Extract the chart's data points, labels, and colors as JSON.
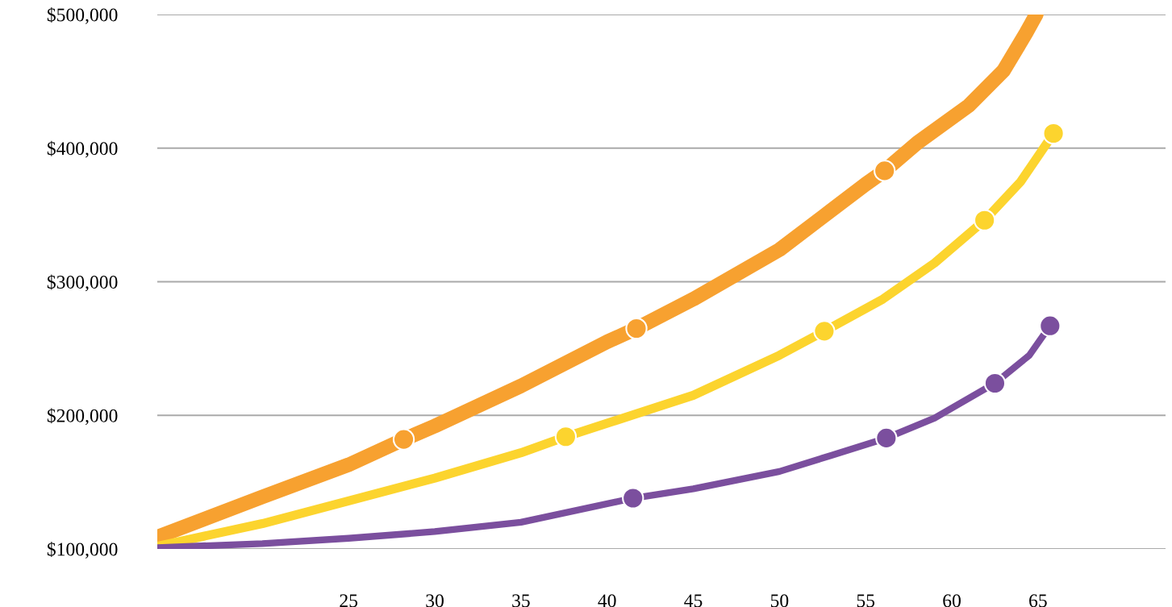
{
  "chart_data": {
    "type": "line",
    "xlim": [
      13.9,
      72.4
    ],
    "ylim": [
      100000,
      500000
    ],
    "xticks": [
      25,
      30,
      35,
      40,
      45,
      50,
      55,
      60,
      65
    ],
    "yticks": [
      {
        "value": 100000,
        "label": "$100,000"
      },
      {
        "value": 200000,
        "label": "$200,000"
      },
      {
        "value": 300000,
        "label": "$300,000"
      },
      {
        "value": 400000,
        "label": "$400,000"
      },
      {
        "value": 500000,
        "label": "$500,000"
      }
    ],
    "grid": "y",
    "legend": false,
    "series": [
      {
        "color": "#f7a130",
        "marker": "none",
        "x": [
          13.9,
          20,
          25,
          28.2,
          30,
          35,
          40,
          41.7,
          45,
          50,
          55,
          56.1,
          58,
          61,
          63,
          64.3,
          64.9
        ],
        "values": [
          109000,
          139000,
          163000,
          182000,
          192000,
          222000,
          255000,
          265000,
          287000,
          324000,
          373000,
          383000,
          404000,
          432000,
          458000,
          486000,
          500000
        ]
      },
      {
        "color": "#fcd42e",
        "marker": "none",
        "x": [
          13.9,
          20,
          25,
          30,
          35,
          37.6,
          45,
          50,
          52.6,
          56,
          59,
          61.9,
          64,
          65.9
        ],
        "values": [
          102000,
          119000,
          136000,
          153000,
          172000,
          184000,
          215000,
          245000,
          263000,
          287000,
          314000,
          346000,
          375000,
          411000
        ]
      },
      {
        "color": "#7b4f9e",
        "marker": "none",
        "x": [
          13.9,
          20,
          25,
          30,
          35,
          41.5,
          45,
          50,
          53,
          56.2,
          59,
          62.5,
          64.5,
          65.7
        ],
        "values": [
          101000,
          104000,
          108000,
          113000,
          120000,
          138000,
          145000,
          158000,
          170000,
          183000,
          198000,
          224000,
          245000,
          267000
        ]
      },
      {
        "type": "scatter",
        "color": "#f7a130",
        "marker": "circle",
        "x": [
          28.2,
          41.7,
          56.1
        ],
        "values": [
          182000,
          265000,
          383000
        ]
      },
      {
        "type": "scatter",
        "color": "#fcd42e",
        "marker": "circle",
        "x": [
          37.6,
          52.6,
          61.9,
          65.9
        ],
        "values": [
          184000,
          263000,
          346000,
          411000
        ]
      },
      {
        "type": "scatter",
        "color": "#7b4f9e",
        "marker": "circle",
        "x": [
          41.5,
          56.2,
          62.5,
          65.7
        ],
        "values": [
          138000,
          183000,
          224000,
          267000
        ]
      }
    ]
  }
}
